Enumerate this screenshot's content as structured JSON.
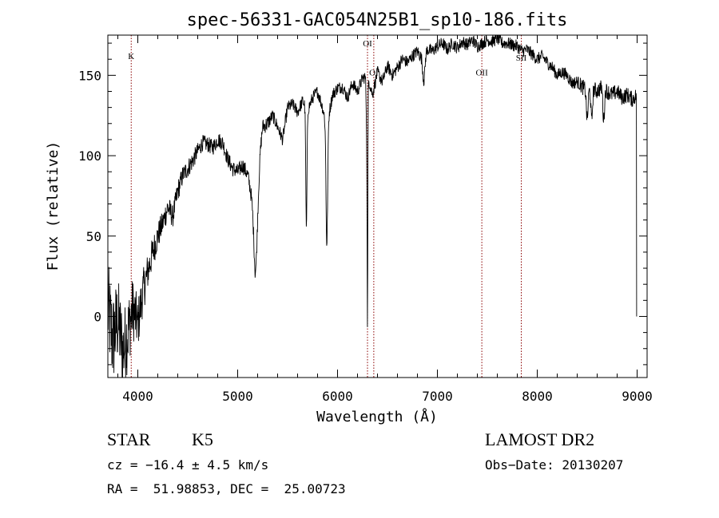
{
  "chart_data": {
    "type": "line",
    "title": "spec-56331-GAC054N25B1_sp10-186.fits",
    "xlabel": "Wavelength (Å)",
    "ylabel": "Flux (relative)",
    "xlim": [
      3700,
      9100
    ],
    "ylim": [
      -38,
      175
    ],
    "xticks": [
      4000,
      5000,
      6000,
      7000,
      8000,
      9000
    ],
    "yticks": [
      0,
      50,
      100,
      150
    ],
    "x": [
      3700,
      3750,
      3800,
      3850,
      3900,
      3950,
      4000,
      4050,
      4100,
      4150,
      4200,
      4250,
      4300,
      4350,
      4400,
      4450,
      4500,
      4550,
      4600,
      4650,
      4700,
      4750,
      4800,
      4850,
      4900,
      4950,
      5000,
      5050,
      5100,
      5150,
      5175,
      5200,
      5250,
      5300,
      5350,
      5400,
      5450,
      5500,
      5550,
      5600,
      5650,
      5700,
      5750,
      5800,
      5850,
      5890,
      5950,
      6000,
      6050,
      6100,
      6150,
      6200,
      6250,
      6300,
      6350,
      6400,
      6450,
      6500,
      6550,
      6600,
      6650,
      6700,
      6750,
      6800,
      6850,
      6900,
      6950,
      7000,
      7050,
      7100,
      7150,
      7200,
      7250,
      7300,
      7350,
      7400,
      7450,
      7500,
      7550,
      7600,
      7650,
      7700,
      7750,
      7800,
      7850,
      7900,
      7950,
      8000,
      8050,
      8100,
      8150,
      8200,
      8250,
      8300,
      8350,
      8400,
      8450,
      8500,
      8550,
      8600,
      8650,
      8700,
      8750,
      8800,
      8850,
      8900,
      8950,
      9000
    ],
    "y": [
      5,
      -15,
      -2,
      -22,
      -10,
      5,
      -5,
      15,
      28,
      40,
      50,
      58,
      68,
      62,
      78,
      88,
      92,
      97,
      103,
      108,
      107,
      105,
      110,
      108,
      98,
      92,
      90,
      94,
      88,
      72,
      62,
      92,
      118,
      120,
      125,
      118,
      110,
      130,
      132,
      127,
      134,
      128,
      136,
      140,
      130,
      118,
      138,
      142,
      143,
      136,
      145,
      140,
      148,
      150,
      138,
      152,
      146,
      156,
      150,
      155,
      160,
      158,
      162,
      165,
      160,
      166,
      165,
      168,
      170,
      166,
      170,
      167,
      171,
      169,
      172,
      168,
      170,
      172,
      171,
      173,
      170,
      170,
      169,
      168,
      165,
      166,
      163,
      160,
      162,
      158,
      155,
      150,
      152,
      150,
      145,
      146,
      143,
      140,
      142,
      140,
      143,
      140,
      138,
      140,
      136,
      138,
      135,
      138
    ],
    "noise_amplitude": [
      30,
      30,
      28,
      26,
      24,
      20,
      16,
      14,
      12,
      10,
      9,
      8,
      8,
      7,
      7,
      6,
      6,
      6,
      5,
      5,
      5,
      5,
      5,
      5,
      5,
      5,
      5,
      5,
      5,
      5,
      5,
      5,
      5,
      5,
      4,
      4,
      4,
      4,
      4,
      4,
      4,
      4,
      4,
      4,
      4,
      4,
      4,
      4,
      4,
      4,
      4,
      4,
      4,
      4,
      4,
      4,
      4,
      4,
      4,
      4,
      4,
      4,
      4,
      4,
      4,
      4,
      4,
      4,
      4,
      4,
      4,
      4,
      4,
      4,
      4,
      4,
      4,
      4,
      4,
      4,
      4,
      4,
      4,
      4,
      4,
      4,
      4,
      4,
      4,
      4,
      4,
      4,
      4,
      4,
      4,
      4,
      5,
      5,
      5,
      5,
      5,
      5,
      5,
      5,
      5,
      5,
      5,
      5
    ],
    "absorption_features": [
      {
        "x": 5185,
        "depth": 40,
        "width": 20
      },
      {
        "x": 5688,
        "depth": 75,
        "width": 6
      },
      {
        "x": 5893,
        "depth": 75,
        "width": 8
      },
      {
        "x": 6295,
        "depth": 50,
        "width": 6
      },
      {
        "x": 6300,
        "depth": 120,
        "width": 3
      },
      {
        "x": 6865,
        "depth": 15,
        "width": 10
      },
      {
        "x": 8500,
        "depth": 18,
        "width": 8
      },
      {
        "x": 8545,
        "depth": 20,
        "width": 8
      },
      {
        "x": 8665,
        "depth": 20,
        "width": 8
      }
    ],
    "end_drop": {
      "x": 8995,
      "y": 0
    },
    "line_markers": [
      {
        "label": "K",
        "x": 3934,
        "label_y": 160
      },
      {
        "label": "OI",
        "x": 6300,
        "label_y": 168
      },
      {
        "label": "OI",
        "x": 6363,
        "label_y": 150
      },
      {
        "label": "OII",
        "x": 7445,
        "label_y": 150
      },
      {
        "label": "SII",
        "x": 7840,
        "label_y": 159
      }
    ],
    "marker_color": "#8b0000",
    "line_color": "#000000"
  },
  "info": {
    "class_label": "STAR",
    "subclass_label": "K5",
    "survey_label": "LAMOST DR2",
    "cz_text": "cz = −16.4 ± 4.5 km/s",
    "obs_date_text": "Obs−Date: 20130207",
    "coords_text": "RA =  51.98853, DEC =  25.00723"
  }
}
